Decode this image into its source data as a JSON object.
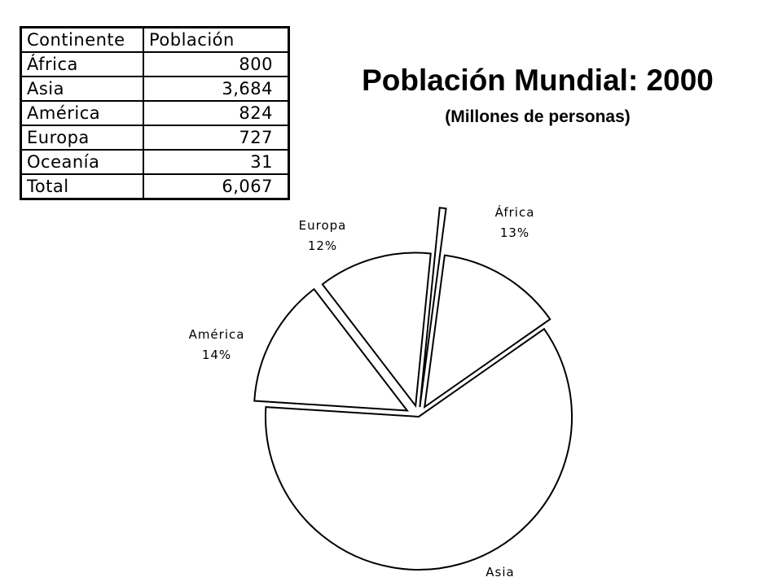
{
  "table": {
    "headers": [
      "Continente",
      "Población"
    ],
    "rows": [
      [
        "África",
        "800"
      ],
      [
        "Asia",
        "3,684"
      ],
      [
        "América",
        "824"
      ],
      [
        "Europa",
        "727"
      ],
      [
        "Oceanía",
        "31"
      ],
      [
        "Total",
        "6,067"
      ]
    ]
  },
  "chart_data": {
    "type": "pie",
    "title": "Población Mundial: 2000",
    "subtitle": "(Millones de personas)",
    "categories": [
      "África",
      "Asia",
      "América",
      "Europa",
      "Oceanía"
    ],
    "values": [
      800,
      3684,
      824,
      727,
      31
    ],
    "labels": [
      {
        "name": "África",
        "percent": "13%"
      },
      {
        "name": "Asia",
        "percent": ""
      },
      {
        "name": "América",
        "percent": "14%"
      },
      {
        "name": "Europa",
        "percent": "12%"
      },
      {
        "name": "Oceanía",
        "percent": ""
      }
    ],
    "exploded": [
      "África",
      "América",
      "Europa",
      "Oceanía"
    ],
    "fill": "#ffffff",
    "stroke": "#000000"
  }
}
